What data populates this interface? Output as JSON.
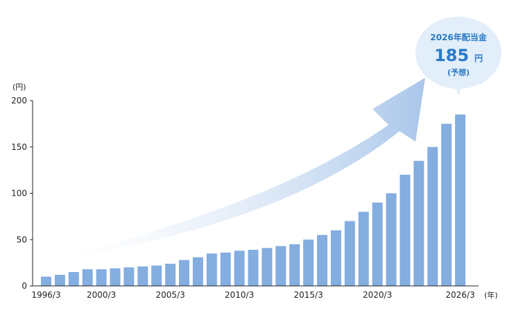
{
  "chart_data": {
    "type": "bar",
    "y_unit_label": "(円)",
    "x_unit_label": "(年)",
    "ylim": [
      0,
      200
    ],
    "y_ticks": [
      0,
      50,
      100,
      150,
      200
    ],
    "x_tick_labels": [
      "1996/3",
      "2000/3",
      "2005/3",
      "2010/3",
      "2015/3",
      "2020/3",
      "2026/3"
    ],
    "categories": [
      "1996/3",
      "1997/3",
      "1998/3",
      "1999/3",
      "2000/3",
      "2001/3",
      "2002/3",
      "2003/3",
      "2004/3",
      "2005/3",
      "2006/3",
      "2007/3",
      "2008/3",
      "2009/3",
      "2010/3",
      "2011/3",
      "2012/3",
      "2013/3",
      "2014/3",
      "2015/3",
      "2016/3",
      "2017/3",
      "2018/3",
      "2019/3",
      "2020/3",
      "2021/3",
      "2022/3",
      "2023/3",
      "2024/3",
      "2025/3",
      "2026/3"
    ],
    "values": [
      10,
      12,
      15,
      18,
      18,
      19,
      20,
      21,
      22,
      24,
      28,
      31,
      35,
      36,
      38,
      39,
      41,
      43,
      45,
      50,
      55,
      60,
      70,
      80,
      90,
      100,
      120,
      135,
      150,
      175,
      185
    ],
    "grid": false,
    "colors": {
      "bar": "#84ade0",
      "axis": "#222222",
      "arrow": "#a9c6ea",
      "callout_bubble": "#e2eef9",
      "callout_text": "#2a7ac8"
    },
    "callout": {
      "title": "2026年配当金",
      "value": "185",
      "unit": "円",
      "sub": "(予想)"
    }
  }
}
